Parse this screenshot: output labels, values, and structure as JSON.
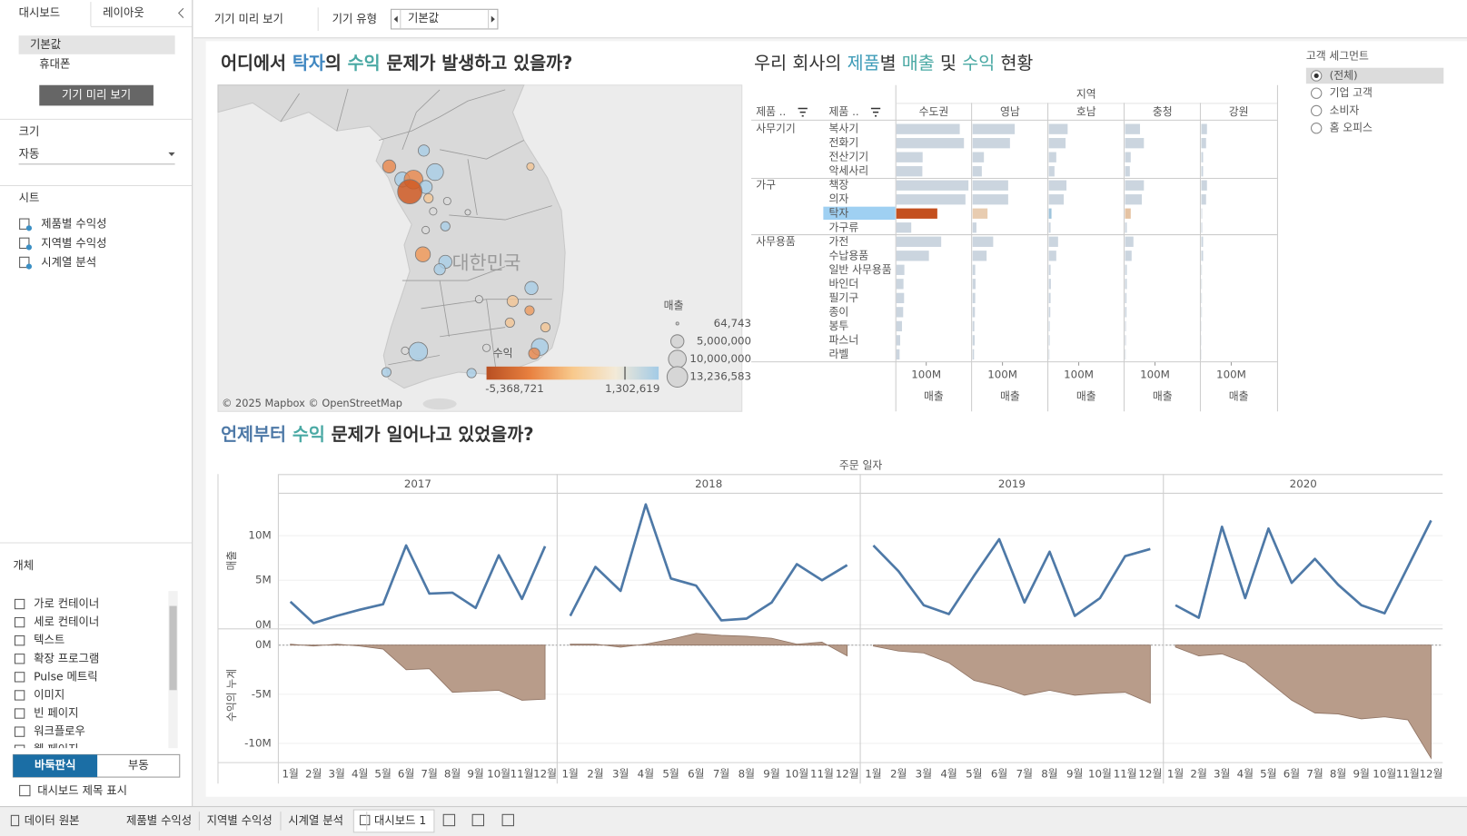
{
  "sidebar": {
    "tabs": [
      "대시보드",
      "레이아웃"
    ],
    "devices": [
      "기본값",
      "휴대폰"
    ],
    "preview_button": "기기 미리 보기",
    "size_label": "크기",
    "size_value": "자동",
    "sheets_label": "시트",
    "sheets": [
      "제품별 수익성",
      "지역별 수익성",
      "시계열 분석"
    ],
    "objects_label": "개체",
    "objects": [
      "가로 컨테이너",
      "세로 컨테이너",
      "텍스트",
      "확장 프로그램",
      "Pulse 메트릭",
      "이미지",
      "빈 페이지",
      "워크플로우",
      "웹 페이지"
    ],
    "layout_modes": [
      "바둑판식",
      "부동"
    ],
    "show_title": "대시보드 제목 표시"
  },
  "toolbar": {
    "preview": "기기 미리 보기",
    "device_type_label": "기기 유형",
    "device_type": "기본값"
  },
  "map": {
    "title": [
      {
        "text": "어디에서 "
      },
      {
        "text": "탁자",
        "color": "#3f87c1"
      },
      {
        "text": "의 "
      },
      {
        "text": "수익",
        "color": "#4aa9a4"
      },
      {
        "text": " 문제가 발생하고 있을까?"
      }
    ],
    "country_label": "대한민국",
    "credit": "© 2025 Mapbox © OpenStreetMap",
    "size_legend": {
      "title": "매출",
      "labels": [
        "64,743",
        "5,000,000",
        "10,000,000",
        "13,236,583"
      ]
    },
    "color_legend": {
      "title": "수익",
      "labels": [
        "-5,368,721",
        "1,302,619"
      ],
      "colors": [
        "#b84f22",
        "#e8803f",
        "#f8c98c",
        "#f3ead8",
        "#a3cbe6"
      ]
    }
  },
  "filter": {
    "title": "고객 세그먼트",
    "options": [
      "(전체)",
      "기업 고객",
      "소비자",
      "홈 오피스"
    ],
    "selected": "(전체)"
  },
  "chart_data": [
    {
      "type": "bar",
      "orientation": "horizontal",
      "title": [
        {
          "text": "우리 회사의 "
        },
        {
          "text": "제품",
          "color": "#3f9cb8"
        },
        {
          "text": "별 "
        },
        {
          "text": "매출",
          "color": "#4aa9a4"
        },
        {
          "text": " 및 "
        },
        {
          "text": "수익",
          "color": "#4aa9a4"
        },
        {
          "text": " 현황"
        }
      ],
      "row_headers": [
        "제품 ..",
        "제품 .."
      ],
      "column_header": "지역",
      "groups": [
        {
          "name": "사무기기",
          "categories": [
            "복사기",
            "전화기",
            "전산기기",
            "악세사리"
          ]
        },
        {
          "name": "가구",
          "categories": [
            "책장",
            "의자",
            "탁자",
            "가구류"
          ]
        },
        {
          "name": "사무용품",
          "categories": [
            "가전",
            "수납용품",
            "일반 사무용품",
            "바인더",
            "필기구",
            "종이",
            "봉투",
            "파스너",
            "라벨"
          ]
        }
      ],
      "color": "#cbd5df",
      "highlight_category": "탁자",
      "series": [
        {
          "name": "수도권",
          "highlight_color": "#c4501f",
          "values": [
            212000000,
            226000000,
            88000000,
            87000000,
            241000000,
            231000000,
            137000000,
            50000000,
            150000000,
            109000000,
            27000000,
            24000000,
            26000000,
            23000000,
            19000000,
            13000000,
            11000000
          ]
        },
        {
          "name": "영남",
          "highlight_color": "#e8ccb0",
          "values": [
            141000000,
            125000000,
            38000000,
            31000000,
            119000000,
            119000000,
            50000000,
            13000000,
            69000000,
            47000000,
            9000000,
            10000000,
            9000000,
            8000000,
            6000000,
            7000000,
            5000000
          ]
        },
        {
          "name": "호남",
          "highlight_color": "#9fc4dc",
          "values": [
            63000000,
            56000000,
            25000000,
            19000000,
            59000000,
            50000000,
            9000000,
            6000000,
            31000000,
            25000000,
            6000000,
            7000000,
            6000000,
            5000000,
            3000000,
            3000000,
            2000000
          ]
        },
        {
          "name": "충청",
          "highlight_color": "#e5c3a3",
          "values": [
            50000000,
            63000000,
            19000000,
            16000000,
            63000000,
            56000000,
            19000000,
            6000000,
            28000000,
            22000000,
            6000000,
            6000000,
            5000000,
            5000000,
            3000000,
            3000000,
            2000000
          ]
        },
        {
          "name": "강원",
          "highlight_color": "#d6dde5",
          "values": [
            19000000,
            16000000,
            6000000,
            6000000,
            19000000,
            16000000,
            3000000,
            3000000,
            6000000,
            6000000,
            2000000,
            2000000,
            2000000,
            2000000,
            1000000,
            1000000,
            1000000
          ]
        }
      ],
      "xlim": [
        0,
        250000000
      ],
      "xticks": [
        {
          "value": 100000000,
          "label": "100M"
        }
      ],
      "xlabel": "매출"
    },
    {
      "type": "line",
      "title": [
        {
          "text": "언제부터 ",
          "color": "#4e79a7"
        },
        {
          "text": "수익",
          "color": "#4aa9a4"
        },
        {
          "text": " 문제가 일어나고 있었을까?"
        }
      ],
      "xlabel": "주문 일자",
      "panels": [
        "2017",
        "2018",
        "2019",
        "2020"
      ],
      "categories": [
        "1월",
        "2월",
        "3월",
        "4월",
        "5월",
        "6월",
        "7월",
        "8월",
        "9월",
        "10월",
        "11월",
        "12월"
      ],
      "rows": [
        {
          "name": "매출",
          "type": "line",
          "color": "#4e79a7",
          "ylim": [
            -400000,
            14800000
          ],
          "yticks": [
            {
              "value": 0,
              "label": "0M"
            },
            {
              "value": 5000000,
              "label": "5M"
            },
            {
              "value": 10000000,
              "label": "10M"
            }
          ],
          "values": [
            [
              2600000,
              200000,
              1000000,
              1700000,
              2300000,
              8900000,
              3500000,
              3600000,
              1900000,
              7800000,
              2900000,
              8800000
            ],
            [
              1000000,
              6500000,
              3800000,
              13500000,
              5200000,
              4400000,
              500000,
              700000,
              2500000,
              6800000,
              5000000,
              6700000
            ],
            [
              8900000,
              6000000,
              2200000,
              1200000,
              5500000,
              9600000,
              2500000,
              8200000,
              1000000,
              3000000,
              7700000,
              8500000
            ],
            [
              2200000,
              800000,
              11000000,
              3000000,
              10800000,
              4700000,
              7400000,
              4500000,
              2200000,
              1300000,
              6500000,
              11700000
            ]
          ]
        },
        {
          "name": "수익의 누계",
          "type": "area",
          "color": "#b89c8a",
          "ylim": [
            -11900000,
            1700000
          ],
          "yticks": [
            {
              "value": 0,
              "label": "0M"
            },
            {
              "value": -5000000,
              "label": "-5M"
            },
            {
              "value": -10000000,
              "label": "-10M"
            }
          ],
          "values": [
            [
              100000,
              -100000,
              100000,
              -100000,
              -400000,
              -2500000,
              -2400000,
              -4800000,
              -4700000,
              -4600000,
              -5600000,
              -5500000
            ],
            [
              100000,
              100000,
              -200000,
              100000,
              600000,
              1200000,
              1000000,
              900000,
              700000,
              100000,
              300000,
              -1100000
            ],
            [
              -100000,
              -600000,
              -800000,
              -1800000,
              -3600000,
              -4200000,
              -5100000,
              -4600000,
              -5100000,
              -4900000,
              -4800000,
              -5900000
            ],
            [
              -200000,
              -1100000,
              -900000,
              -1800000,
              -3700000,
              -5600000,
              -6900000,
              -7000000,
              -7500000,
              -7300000,
              -7600000,
              -11500000
            ]
          ]
        }
      ]
    }
  ],
  "sheet_tabs": {
    "data_source": "데이터 원본",
    "sheets": [
      "제품별 수익성",
      "지역별 수익성",
      "시계열 분석",
      "대시보드 1"
    ],
    "active": "대시보드 1"
  }
}
